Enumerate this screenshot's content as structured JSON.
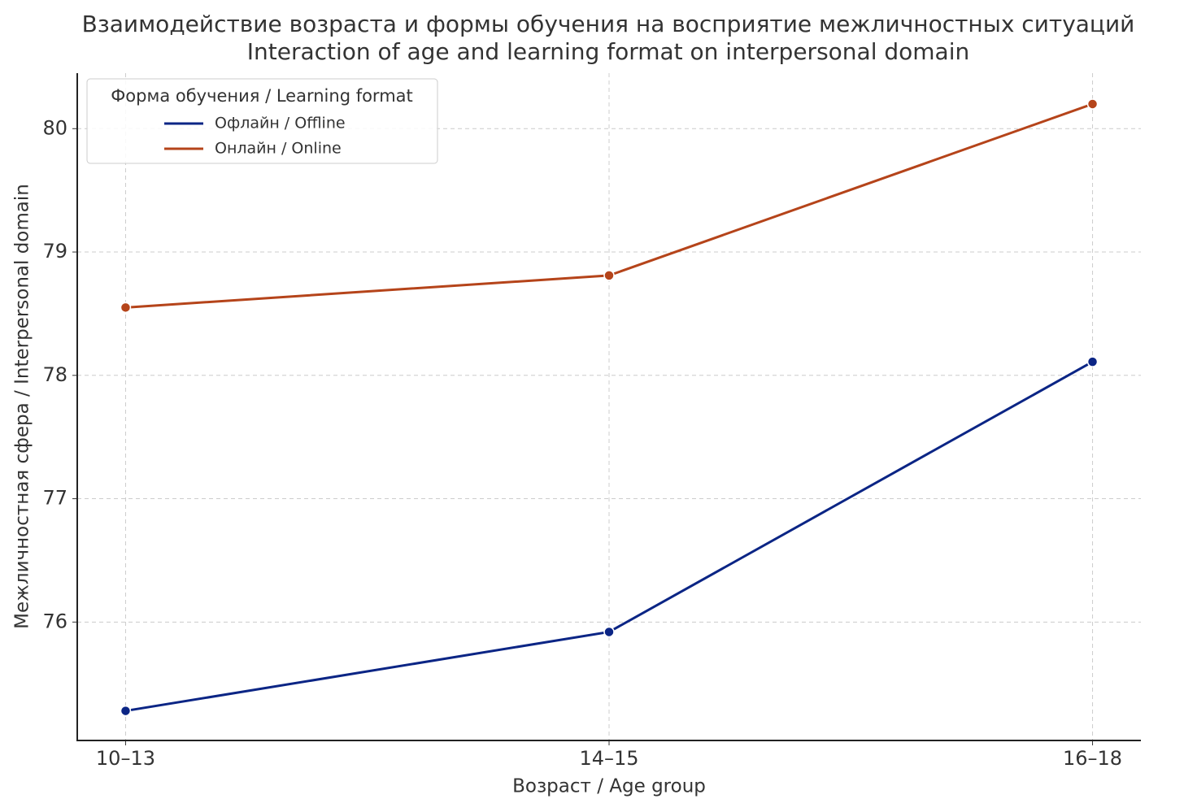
{
  "chart_data": {
    "type": "line",
    "title": "Взаимодействие возраста и формы обучения на восприятие межличностных ситуаций",
    "subtitle": "Interaction of age and learning format on interpersonal domain",
    "x_label": "Возраст / Age group",
    "y_label": "Межличностная сфера / Interpersonal domain",
    "categories": [
      "10–13",
      "14–15",
      "16–18"
    ],
    "series": [
      {
        "name": "Офлайн / Offline",
        "color": "#0b2585",
        "values": [
          75.28,
          75.92,
          78.11
        ]
      },
      {
        "name": "Онлайн / Online",
        "color": "#b5441a",
        "values": [
          78.55,
          78.81,
          80.2
        ]
      }
    ],
    "ylim": [
      75.04,
      80.45
    ],
    "yticks": [
      76,
      77,
      78,
      79,
      80
    ],
    "grid": true,
    "legend": {
      "title": "Форма обучения / Learning format",
      "position": "upper left"
    }
  }
}
